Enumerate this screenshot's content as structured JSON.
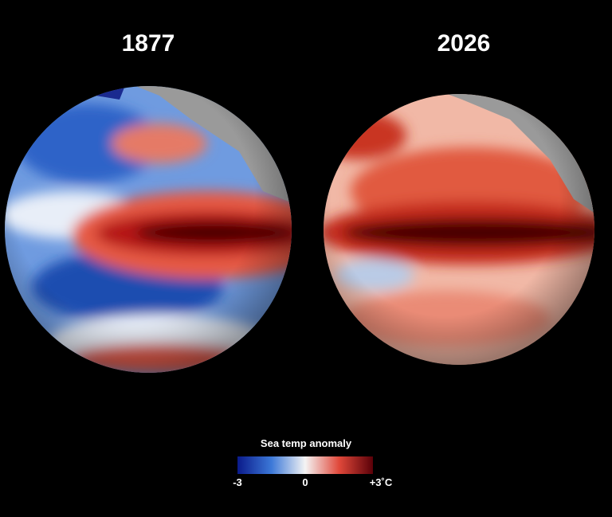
{
  "panels": [
    {
      "title": "1877"
    },
    {
      "title": "2026"
    }
  ],
  "legend": {
    "title": "Sea temp anomaly",
    "range": [
      -3,
      3
    ],
    "ticks": [
      -3,
      0,
      {
        "value": 3,
        "label": "+3˚C"
      }
    ]
  }
}
